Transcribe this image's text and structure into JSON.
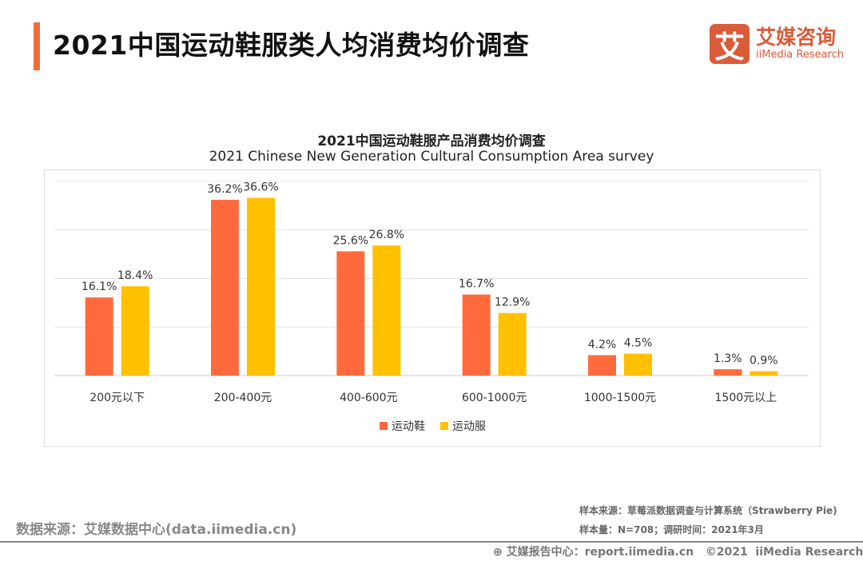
{
  "header": {
    "title": "2021中国运动鞋服类人均消费均价调查"
  },
  "logo": {
    "mark": "艾",
    "cn": "艾媒咨询",
    "en": "iiMedia Research"
  },
  "chart_data": {
    "type": "bar",
    "title": "2021中国运动鞋服产品消费均价调查",
    "subtitle": "2021 Chinese New Generation Cultural Consumption Area survey",
    "categories": [
      "200元以下",
      "200-400元",
      "400-600元",
      "600-1000元",
      "1000-1500元",
      "1500元以上"
    ],
    "series": [
      {
        "name": "运动鞋",
        "values": [
          16.1,
          36.2,
          25.6,
          16.7,
          4.2,
          1.3
        ],
        "labels": [
          "16.1%",
          "36.2%",
          "25.6%",
          "16.7%",
          "4.2%",
          "1.3%"
        ],
        "color": "#ff6a3d"
      },
      {
        "name": "运动服",
        "values": [
          18.4,
          36.6,
          26.8,
          12.9,
          4.5,
          0.9
        ],
        "labels": [
          "18.4%",
          "36.6%",
          "26.8%",
          "12.9%",
          "4.5%",
          "0.9%"
        ],
        "color": "#ffc000"
      }
    ],
    "ylim": [
      0,
      40
    ],
    "grid": true,
    "legend": "bottom",
    "unit": "%"
  },
  "footer": {
    "source": "数据来源：艾媒数据中心(data.iimedia.cn)",
    "sample_source": "样本来源：草莓派数据调查与计算系统（Strawberry Pie)",
    "sample_size": "样本量：N=708；调研时间：2021年3月",
    "copyright": "艾媒报告中心：report.iimedia.cn   ©2021  iiMedia Research  Inc"
  }
}
